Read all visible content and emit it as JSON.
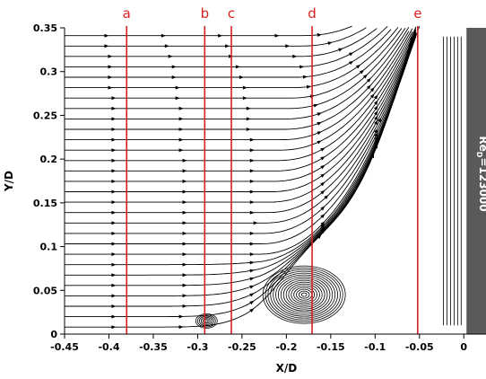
{
  "chart_data": {
    "type": "streamline",
    "xlabel": "X/D",
    "ylabel": "Y/D",
    "xlim": [
      -0.45,
      0.025
    ],
    "ylim": [
      0,
      0.35
    ],
    "x_ticks": [
      "-0.45",
      "-0.4",
      "-0.35",
      "-0.3",
      "-0.25",
      "-0.2",
      "-0.15",
      "-0.1",
      "-0.05",
      "0"
    ],
    "y_ticks": [
      "0",
      "0.05",
      "0.1",
      "0.15",
      "0.2",
      "0.25",
      "0.3",
      "0.35"
    ],
    "grid": false,
    "stations": [
      {
        "label": "a",
        "x": -0.38
      },
      {
        "label": "b",
        "x": -0.292
      },
      {
        "label": "c",
        "x": -0.262
      },
      {
        "label": "d",
        "x": -0.171
      },
      {
        "label": "e",
        "x": -0.052
      }
    ],
    "station_color": "#d62020",
    "wall": {
      "x_start": 0.003,
      "color": "#5a5a5a",
      "label_main": "Re",
      "label_sub": "D",
      "label_value": "=123000"
    },
    "vortices": [
      {
        "name": "primary horseshoe vortex",
        "x": -0.18,
        "y": 0.045
      },
      {
        "name": "secondary vortex",
        "x": -0.29,
        "y": 0.015
      }
    ]
  }
}
